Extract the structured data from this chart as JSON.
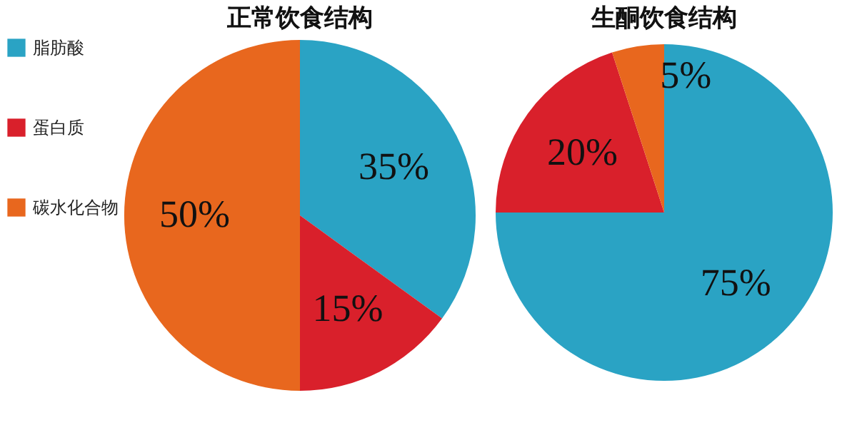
{
  "chart_data": [
    {
      "type": "pie",
      "title": "正常饮食结构",
      "categories": [
        "脂肪酸",
        "蛋白质",
        "碳水化合物"
      ],
      "values": [
        35,
        15,
        50
      ],
      "colors": [
        "#2aa3c4",
        "#d9202b",
        "#e8671e"
      ],
      "value_labels": [
        "35%",
        "15%",
        "50%"
      ],
      "legend": "left"
    },
    {
      "type": "pie",
      "title": "生酮饮食结构",
      "categories": [
        null,
        null,
        null
      ],
      "values": [
        75,
        20,
        5
      ],
      "colors": [
        "#2aa3c4",
        "#d9202b",
        "#e8671e"
      ],
      "value_labels": [
        "75%",
        "20%",
        "5%"
      ]
    }
  ]
}
